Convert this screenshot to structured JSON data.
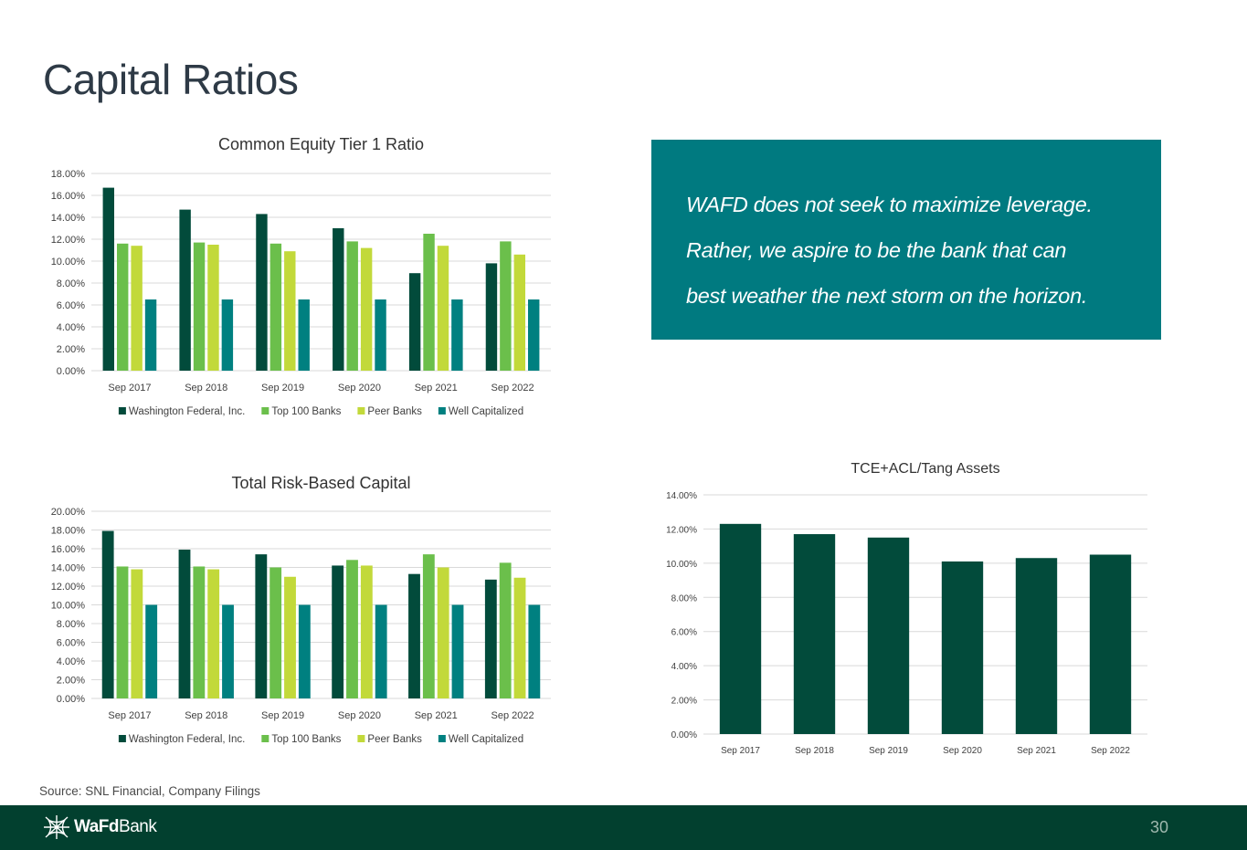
{
  "page": {
    "title": "Capital Ratios",
    "source": "Source: SNL Financial, Company Filings",
    "page_number": "30"
  },
  "brand": {
    "name_bold": "WaFd",
    "name_regular": "Bank",
    "footer_color": "#02402f",
    "accent": "#007a80"
  },
  "quote": {
    "lines": [
      "WAFD does not seek to maximize leverage.",
      "Rather, we aspire to be the bank that can",
      "best weather the next storm on the horizon."
    ]
  },
  "chart_data": [
    {
      "id": "cet1",
      "type": "bar",
      "title": "Common Equity Tier 1 Ratio",
      "categories": [
        "Sep 2017",
        "Sep 2018",
        "Sep 2019",
        "Sep 2020",
        "Sep 2021",
        "Sep 2022"
      ],
      "ylim": [
        0,
        18
      ],
      "yticks": [
        "0.00%",
        "2.00%",
        "4.00%",
        "6.00%",
        "8.00%",
        "10.00%",
        "12.00%",
        "14.00%",
        "16.00%",
        "18.00%"
      ],
      "legend": "bottom",
      "series": [
        {
          "name": "Washington Federal, Inc.",
          "color": "#024b3b",
          "values": [
            16.7,
            14.7,
            14.3,
            13.0,
            8.9,
            9.8
          ]
        },
        {
          "name": "Top 100 Banks",
          "color": "#6bbf4b",
          "values": [
            11.6,
            11.7,
            11.6,
            11.8,
            12.5,
            11.8
          ]
        },
        {
          "name": "Peer Banks",
          "color": "#c2d93a",
          "values": [
            11.4,
            11.5,
            10.9,
            11.2,
            11.4,
            10.6
          ]
        },
        {
          "name": "Well Capitalized",
          "color": "#008080",
          "values": [
            6.5,
            6.5,
            6.5,
            6.5,
            6.5,
            6.5
          ]
        }
      ]
    },
    {
      "id": "trbc",
      "type": "bar",
      "title": "Total Risk-Based Capital",
      "categories": [
        "Sep 2017",
        "Sep 2018",
        "Sep 2019",
        "Sep 2020",
        "Sep 2021",
        "Sep 2022"
      ],
      "ylim": [
        0,
        20
      ],
      "yticks": [
        "0.00%",
        "2.00%",
        "4.00%",
        "6.00%",
        "8.00%",
        "10.00%",
        "12.00%",
        "14.00%",
        "16.00%",
        "18.00%",
        "20.00%"
      ],
      "legend": "bottom",
      "series": [
        {
          "name": "Washington Federal, Inc.",
          "color": "#024b3b",
          "values": [
            17.9,
            15.9,
            15.4,
            14.2,
            13.3,
            12.7
          ]
        },
        {
          "name": "Top 100 Banks",
          "color": "#6bbf4b",
          "values": [
            14.1,
            14.1,
            14.0,
            14.8,
            15.4,
            14.5
          ]
        },
        {
          "name": "Peer Banks",
          "color": "#c2d93a",
          "values": [
            13.8,
            13.8,
            13.0,
            14.2,
            14.0,
            12.9
          ]
        },
        {
          "name": "Well Capitalized",
          "color": "#008080",
          "values": [
            10.0,
            10.0,
            10.0,
            10.0,
            10.0,
            10.0
          ]
        }
      ]
    },
    {
      "id": "tce",
      "type": "bar",
      "title": "TCE+ACL/Tang Assets",
      "categories": [
        "Sep 2017",
        "Sep 2018",
        "Sep 2019",
        "Sep 2020",
        "Sep 2021",
        "Sep 2022"
      ],
      "ylim": [
        0,
        14
      ],
      "yticks": [
        "0.00%",
        "2.00%",
        "4.00%",
        "6.00%",
        "8.00%",
        "10.00%",
        "12.00%",
        "14.00%"
      ],
      "legend": "none",
      "series": [
        {
          "name": "TCE+ACL/Tang Assets",
          "color": "#024b3b",
          "values": [
            12.3,
            11.7,
            11.5,
            10.1,
            10.3,
            10.5
          ]
        }
      ]
    }
  ]
}
